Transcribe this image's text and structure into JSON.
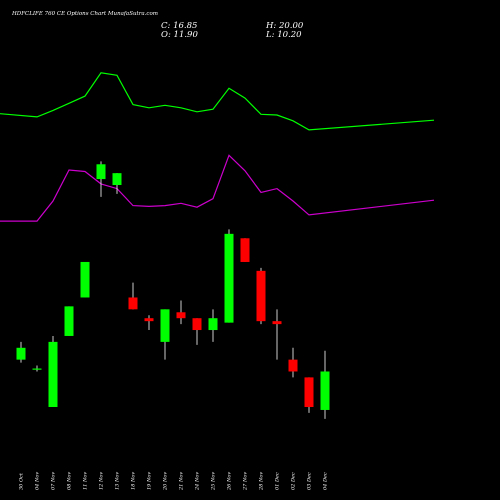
{
  "header": {
    "title": "HDFCLIFE 760  CE Options  Chart MunafaSutra.com",
    "open_label": "O: 11.90",
    "high_label": "H: 20.00",
    "low_label": "L: 10.20",
    "close_label": "C: 16.85"
  },
  "colors": {
    "background": "#000000",
    "up": "#00ff00",
    "down": "#ff0000",
    "wick": "#ffffff",
    "ma_fast": "#00ff00",
    "ma_slow": "#cc00cc",
    "text": "#ffffff"
  },
  "chart_data": {
    "type": "candlestick",
    "title": "HDFCLIFE 760  CE Options  Chart MunafaSutra.com",
    "categories": [
      "30 Oct",
      "04 Nov",
      "07 Nov",
      "08 Nov",
      "11 Nov",
      "12 Nov",
      "13 Nov",
      "18 Nov",
      "19 Nov",
      "20 Nov",
      "21 Nov",
      "24 Nov",
      "25 Nov",
      "26 Nov",
      "27 Nov",
      "28 Nov",
      "01 Dec",
      "02 Dec",
      "03 Dec",
      "04 Dec"
    ],
    "candles": [
      {
        "open": 15.6,
        "high": 16.2,
        "low": 15.5,
        "close": 16.0,
        "dir": "up"
      },
      {
        "open": 15.3,
        "high": 15.4,
        "low": 15.2,
        "close": 15.3,
        "dir": "up"
      },
      {
        "open": 14.0,
        "high": 16.4,
        "low": 14.0,
        "close": 16.2,
        "dir": "up"
      },
      {
        "open": 16.4,
        "high": 17.4,
        "low": 16.4,
        "close": 17.4,
        "dir": "up"
      },
      {
        "open": 17.7,
        "high": 18.9,
        "low": 17.7,
        "close": 18.9,
        "dir": "up"
      },
      {
        "open": 21.7,
        "high": 22.3,
        "low": 21.1,
        "close": 22.2,
        "dir": "up"
      },
      {
        "open": 21.5,
        "high": 21.9,
        "low": 21.2,
        "close": 21.9,
        "dir": "up"
      },
      {
        "open": 17.7,
        "high": 18.2,
        "low": 17.3,
        "close": 17.3,
        "dir": "down"
      },
      {
        "open": 17.0,
        "high": 17.1,
        "low": 16.6,
        "close": 16.9,
        "dir": "down"
      },
      {
        "open": 16.2,
        "high": 17.3,
        "low": 15.6,
        "close": 17.3,
        "dir": "up"
      },
      {
        "open": 17.2,
        "high": 17.6,
        "low": 16.8,
        "close": 17.0,
        "dir": "down"
      },
      {
        "open": 17.0,
        "high": 17.0,
        "low": 16.1,
        "close": 16.6,
        "dir": "down"
      },
      {
        "open": 16.6,
        "high": 17.3,
        "low": 16.2,
        "close": 17.0,
        "dir": "up"
      },
      {
        "open": 16.85,
        "high": 20.0,
        "low": 16.85,
        "close": 19.85,
        "dir": "up"
      },
      {
        "open": 19.7,
        "high": 19.7,
        "low": 18.9,
        "close": 18.9,
        "dir": "down"
      },
      {
        "open": 18.6,
        "high": 18.7,
        "low": 16.8,
        "close": 16.9,
        "dir": "down"
      },
      {
        "open": 16.9,
        "high": 17.3,
        "low": 15.6,
        "close": 16.8,
        "dir": "down"
      },
      {
        "open": 15.6,
        "high": 16.0,
        "low": 15.0,
        "close": 15.2,
        "dir": "down"
      },
      {
        "open": 15.0,
        "high": 15.0,
        "low": 13.8,
        "close": 14.0,
        "dir": "down"
      },
      {
        "open": 13.9,
        "high": 15.9,
        "low": 13.6,
        "close": 15.2,
        "dir": "up"
      }
    ],
    "ma_fast": {
      "name": "",
      "values": [
        41.0,
        38.5,
        43.5,
        49.0,
        54.5,
        72.5,
        70.5,
        48.0,
        45.5,
        47.5,
        45.5,
        42.5,
        44.5,
        60.5,
        53.0,
        40.5,
        40.0,
        35.5,
        28.5,
        36.0
      ],
      "dual_axis_note": ""
    },
    "ma_slow": {
      "values": [
        22.5,
        22.5,
        35.5,
        55.5,
        54.5,
        46.5,
        43.5,
        32.5,
        32.0,
        32.5,
        34.0,
        31.5,
        37.0,
        65.0,
        55.0,
        41.0,
        43.5,
        35.5,
        26.5,
        36.0
      ]
    },
    "grid": false,
    "legend": "none"
  }
}
